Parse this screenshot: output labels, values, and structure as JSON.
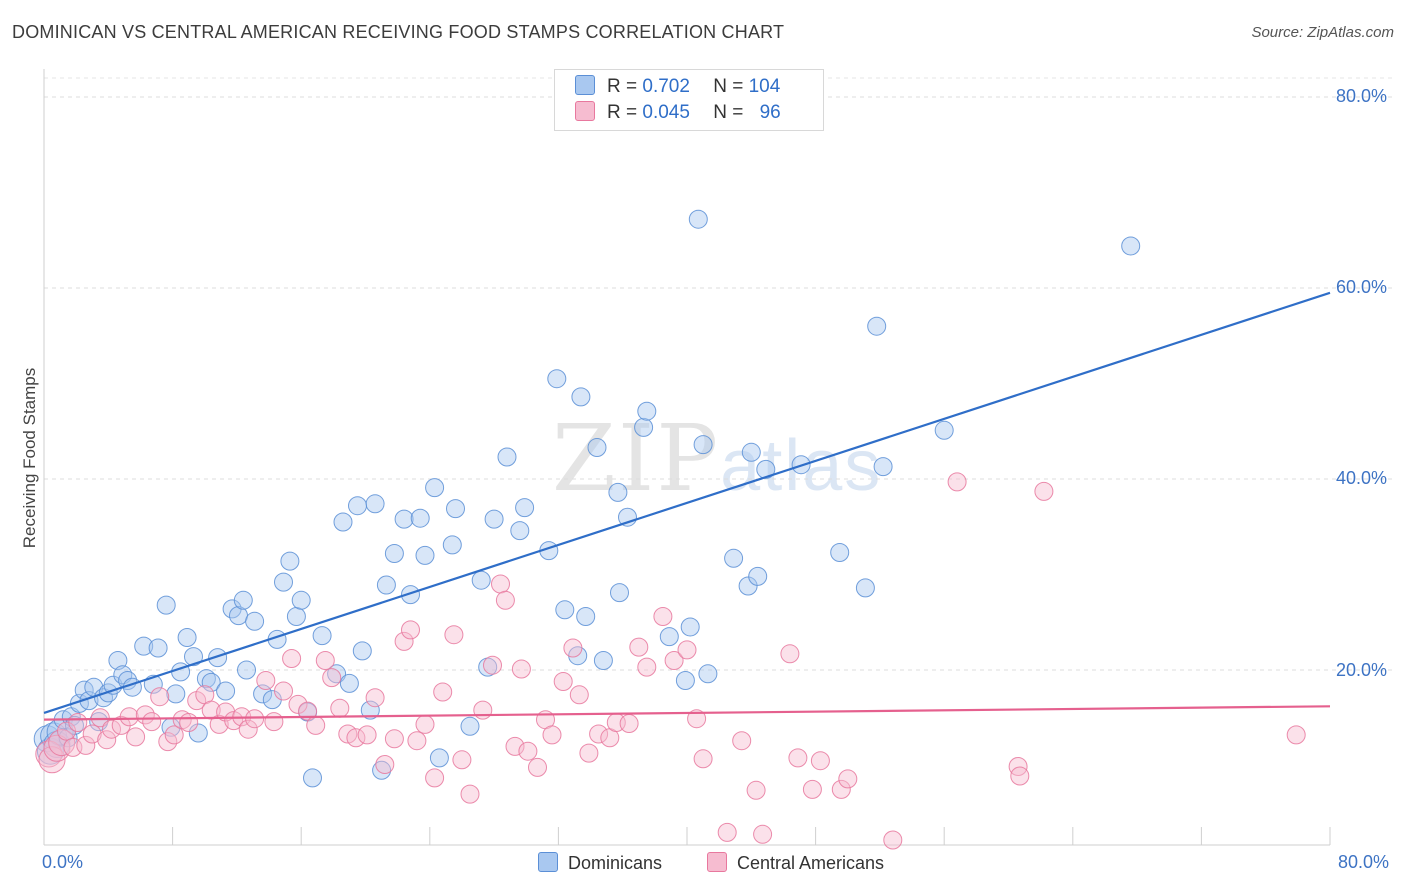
{
  "title": "DOMINICAN VS CENTRAL AMERICAN RECEIVING FOOD STAMPS CORRELATION CHART",
  "source": "Source: ZipAtlas.com",
  "watermark": {
    "zip": "ZIP",
    "atlas": "atlas"
  },
  "legend": {
    "rows": [
      {
        "r_label": "R =",
        "r_value": "0.702",
        "n_label": "N =",
        "n_value": "104",
        "color": "#a9c8f0"
      },
      {
        "r_label": "R =",
        "r_value": "0.045",
        "n_label": "N =",
        "n_value": "96",
        "color": "#f6bcd0"
      }
    ]
  },
  "chart_data": {
    "type": "scatter",
    "title": "DOMINICAN VS CENTRAL AMERICAN RECEIVING FOOD STAMPS CORRELATION CHART",
    "xlabel": "",
    "ylabel": "Receiving Food Stamps",
    "x_tick_labels": [
      "0.0%",
      "80.0%"
    ],
    "y_tick_labels": [
      "20.0%",
      "40.0%",
      "60.0%",
      "80.0%"
    ],
    "y_tick_values": [
      20,
      40,
      60,
      80
    ],
    "xlim": [
      0,
      80
    ],
    "ylim": [
      0,
      82
    ],
    "grid": "horizontal dashed",
    "legend_placement": "bottom-center",
    "series": [
      {
        "name": "Dominicans",
        "color": "#5b8fd6",
        "fill": "#a9c8f0",
        "r": 0.702,
        "n": 104,
        "trend": [
          [
            0,
            15.5
          ],
          [
            80,
            59.5
          ]
        ],
        "points": [
          [
            0.2,
            12.8
          ],
          [
            0.4,
            11.5
          ],
          [
            0.6,
            13.1
          ],
          [
            0.8,
            12.2
          ],
          [
            1.0,
            13.5
          ],
          [
            1.2,
            14.8
          ],
          [
            1.5,
            12.9
          ],
          [
            1.7,
            15.1
          ],
          [
            1.9,
            14.2
          ],
          [
            2.2,
            16.5
          ],
          [
            2.5,
            17.9
          ],
          [
            2.8,
            16.8
          ],
          [
            3.1,
            18.2
          ],
          [
            3.4,
            14.6
          ],
          [
            3.7,
            17.1
          ],
          [
            4.0,
            17.6
          ],
          [
            4.3,
            18.4
          ],
          [
            4.6,
            21.0
          ],
          [
            4.9,
            19.5
          ],
          [
            5.2,
            18.9
          ],
          [
            5.5,
            18.2
          ],
          [
            6.2,
            22.5
          ],
          [
            6.8,
            18.5
          ],
          [
            7.1,
            22.3
          ],
          [
            7.6,
            26.8
          ],
          [
            7.9,
            14.0
          ],
          [
            8.2,
            17.5
          ],
          [
            8.5,
            19.8
          ],
          [
            8.9,
            23.4
          ],
          [
            9.3,
            21.4
          ],
          [
            9.6,
            13.4
          ],
          [
            10.1,
            19.1
          ],
          [
            10.4,
            18.7
          ],
          [
            10.8,
            21.3
          ],
          [
            11.3,
            17.8
          ],
          [
            11.7,
            26.4
          ],
          [
            12.1,
            25.7
          ],
          [
            12.4,
            27.3
          ],
          [
            13.1,
            25.1
          ],
          [
            12.6,
            20.0
          ],
          [
            13.6,
            17.5
          ],
          [
            14.2,
            16.9
          ],
          [
            14.5,
            23.2
          ],
          [
            14.9,
            29.2
          ],
          [
            15.3,
            31.4
          ],
          [
            15.7,
            25.6
          ],
          [
            16.0,
            27.3
          ],
          [
            16.4,
            15.6
          ],
          [
            16.7,
            8.7
          ],
          [
            17.3,
            23.6
          ],
          [
            18.2,
            19.6
          ],
          [
            18.6,
            35.5
          ],
          [
            19.0,
            18.6
          ],
          [
            19.5,
            37.2
          ],
          [
            19.8,
            22.0
          ],
          [
            20.3,
            15.8
          ],
          [
            20.6,
            37.4
          ],
          [
            21.0,
            9.5
          ],
          [
            21.3,
            28.9
          ],
          [
            21.8,
            32.2
          ],
          [
            22.4,
            35.8
          ],
          [
            22.8,
            27.9
          ],
          [
            23.4,
            35.9
          ],
          [
            23.7,
            32.0
          ],
          [
            24.3,
            39.1
          ],
          [
            24.6,
            10.8
          ],
          [
            25.4,
            33.1
          ],
          [
            25.6,
            36.9
          ],
          [
            26.5,
            14.1
          ],
          [
            27.2,
            29.4
          ],
          [
            27.6,
            20.3
          ],
          [
            28.0,
            35.8
          ],
          [
            28.8,
            42.3
          ],
          [
            29.6,
            34.6
          ],
          [
            29.9,
            37.0
          ],
          [
            31.4,
            32.5
          ],
          [
            31.9,
            50.5
          ],
          [
            32.4,
            26.3
          ],
          [
            33.2,
            21.5
          ],
          [
            33.4,
            48.6
          ],
          [
            33.7,
            25.6
          ],
          [
            34.4,
            43.3
          ],
          [
            34.8,
            21.0
          ],
          [
            35.7,
            38.6
          ],
          [
            35.8,
            28.1
          ],
          [
            36.3,
            36.0
          ],
          [
            37.3,
            45.4
          ],
          [
            37.5,
            47.1
          ],
          [
            38.9,
            23.5
          ],
          [
            39.9,
            18.9
          ],
          [
            40.2,
            24.5
          ],
          [
            40.7,
            67.2
          ],
          [
            41.0,
            43.6
          ],
          [
            41.3,
            19.6
          ],
          [
            42.9,
            31.7
          ],
          [
            43.8,
            28.8
          ],
          [
            44.0,
            42.8
          ],
          [
            44.4,
            29.8
          ],
          [
            44.9,
            41.0
          ],
          [
            47.1,
            41.5
          ],
          [
            49.5,
            32.3
          ],
          [
            51.1,
            28.6
          ],
          [
            51.8,
            56.0
          ],
          [
            52.2,
            41.3
          ],
          [
            56.0,
            45.1
          ],
          [
            67.6,
            64.4
          ]
        ]
      },
      {
        "name": "Central Americans",
        "color": "#e8789e",
        "fill": "#f6bcd0",
        "r": 0.045,
        "n": 96,
        "trend": [
          [
            0,
            14.8
          ],
          [
            80,
            16.2
          ]
        ],
        "points": [
          [
            0.3,
            11.2
          ],
          [
            0.5,
            10.6
          ],
          [
            0.8,
            11.8
          ],
          [
            1.1,
            12.4
          ],
          [
            1.4,
            13.6
          ],
          [
            1.8,
            11.9
          ],
          [
            2.1,
            14.5
          ],
          [
            2.6,
            12.1
          ],
          [
            3.0,
            13.3
          ],
          [
            3.5,
            15.0
          ],
          [
            3.9,
            12.7
          ],
          [
            4.2,
            13.8
          ],
          [
            4.8,
            14.2
          ],
          [
            5.3,
            15.1
          ],
          [
            5.7,
            13.0
          ],
          [
            6.3,
            15.3
          ],
          [
            6.7,
            14.6
          ],
          [
            7.2,
            17.2
          ],
          [
            7.7,
            12.5
          ],
          [
            8.1,
            13.2
          ],
          [
            8.6,
            14.8
          ],
          [
            9.0,
            14.5
          ],
          [
            9.5,
            16.8
          ],
          [
            10.0,
            17.4
          ],
          [
            10.4,
            15.8
          ],
          [
            10.9,
            14.3
          ],
          [
            11.3,
            15.6
          ],
          [
            11.8,
            14.7
          ],
          [
            12.3,
            15.1
          ],
          [
            12.7,
            13.8
          ],
          [
            13.1,
            14.9
          ],
          [
            13.8,
            18.9
          ],
          [
            14.3,
            14.6
          ],
          [
            14.9,
            17.8
          ],
          [
            15.4,
            21.2
          ],
          [
            15.8,
            16.4
          ],
          [
            16.4,
            15.7
          ],
          [
            16.9,
            14.2
          ],
          [
            17.5,
            21.0
          ],
          [
            17.9,
            19.2
          ],
          [
            18.4,
            16.0
          ],
          [
            18.9,
            13.3
          ],
          [
            19.4,
            12.9
          ],
          [
            20.1,
            13.2
          ],
          [
            20.6,
            17.1
          ],
          [
            21.2,
            10.1
          ],
          [
            21.8,
            12.8
          ],
          [
            22.4,
            23.0
          ],
          [
            22.8,
            24.2
          ],
          [
            23.2,
            12.6
          ],
          [
            23.7,
            14.3
          ],
          [
            24.3,
            8.7
          ],
          [
            24.8,
            17.7
          ],
          [
            25.5,
            23.7
          ],
          [
            26.0,
            10.6
          ],
          [
            26.5,
            7.0
          ],
          [
            27.3,
            15.8
          ],
          [
            27.9,
            20.5
          ],
          [
            28.4,
            29.0
          ],
          [
            28.7,
            27.3
          ],
          [
            29.3,
            12.0
          ],
          [
            29.7,
            20.1
          ],
          [
            30.1,
            11.5
          ],
          [
            30.7,
            9.8
          ],
          [
            31.2,
            14.8
          ],
          [
            31.6,
            13.2
          ],
          [
            32.3,
            18.8
          ],
          [
            32.9,
            22.3
          ],
          [
            33.3,
            17.4
          ],
          [
            33.9,
            11.3
          ],
          [
            34.5,
            13.3
          ],
          [
            35.2,
            12.9
          ],
          [
            35.6,
            14.5
          ],
          [
            36.4,
            14.4
          ],
          [
            37.0,
            22.4
          ],
          [
            37.5,
            20.3
          ],
          [
            38.5,
            25.6
          ],
          [
            39.2,
            21.0
          ],
          [
            40.0,
            22.1
          ],
          [
            40.6,
            14.9
          ],
          [
            41.0,
            10.7
          ],
          [
            42.5,
            3.0
          ],
          [
            43.4,
            12.6
          ],
          [
            44.3,
            7.4
          ],
          [
            44.7,
            2.8
          ],
          [
            46.4,
            21.7
          ],
          [
            46.9,
            10.8
          ],
          [
            47.8,
            7.5
          ],
          [
            48.3,
            10.5
          ],
          [
            49.6,
            7.5
          ],
          [
            50.0,
            8.6
          ],
          [
            52.8,
            2.2
          ],
          [
            56.8,
            39.7
          ],
          [
            60.6,
            9.9
          ],
          [
            60.7,
            8.9
          ],
          [
            62.2,
            38.7
          ],
          [
            77.9,
            13.2
          ]
        ]
      }
    ]
  }
}
